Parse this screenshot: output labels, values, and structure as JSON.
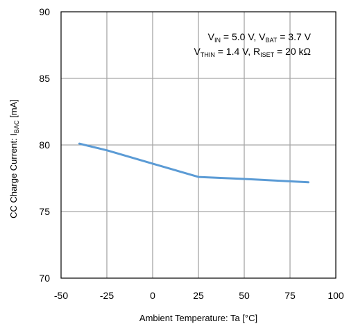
{
  "chart_data": {
    "type": "line",
    "x": [
      -40,
      -25,
      0,
      25,
      50,
      85
    ],
    "series": [
      {
        "values": [
          80.1,
          79.6,
          78.6,
          77.6,
          77.45,
          77.2
        ]
      }
    ],
    "xlim": [
      -50,
      100
    ],
    "ylim": [
      70,
      90
    ],
    "xticks": [
      -50,
      -25,
      0,
      25,
      50,
      75,
      100
    ],
    "yticks": [
      70,
      75,
      80,
      85,
      90
    ],
    "grid": true,
    "xlabel": "Ambient Temperature: Ta [°C]",
    "ylabel": {
      "prefix": "CC Charge Current: I",
      "sub": "BAC",
      "suffix": " [mA]"
    },
    "annotation": {
      "line1": [
        {
          "t": "V"
        },
        {
          "s": "IN"
        },
        {
          "t": " = 5.0 V, V"
        },
        {
          "s": "BAT"
        },
        {
          "t": " = 3.7 V"
        }
      ],
      "line2": [
        {
          "t": "V"
        },
        {
          "s": "THIN"
        },
        {
          "t": " = 1.4 V, R"
        },
        {
          "s": "ISET"
        },
        {
          "t": " = 20 kΩ"
        }
      ]
    },
    "colors": {
      "line": "#5b9bd5",
      "grid": "#a6a6a6",
      "frame": "#000000"
    }
  }
}
